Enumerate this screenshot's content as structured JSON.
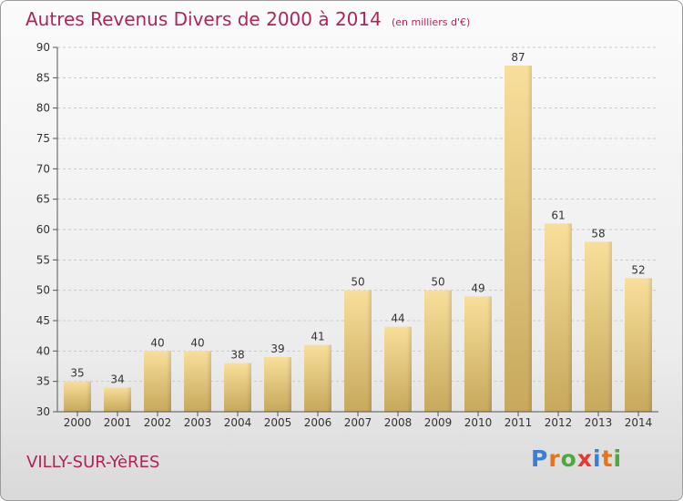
{
  "chart_data": {
    "type": "bar",
    "title": "Autres Revenus Divers de 2000 à 2014",
    "subtitle": "(en milliers d'€)",
    "categories": [
      "2000",
      "2001",
      "2002",
      "2003",
      "2004",
      "2005",
      "2006",
      "2007",
      "2008",
      "2009",
      "2010",
      "2011",
      "2012",
      "2013",
      "2014"
    ],
    "values": [
      35,
      34,
      40,
      40,
      38,
      39,
      41,
      50,
      44,
      50,
      49,
      87,
      61,
      58,
      52
    ],
    "ylim": [
      30,
      90
    ],
    "yticks": [
      30,
      35,
      40,
      45,
      50,
      55,
      60,
      65,
      70,
      75,
      80,
      85,
      90
    ],
    "grid": true,
    "bar_color": "#e3c578"
  },
  "footer": {
    "city": "VILLY-SUR-YèRES",
    "logo": {
      "letters": [
        "P",
        "r",
        "o",
        "x",
        "i",
        "t",
        "i"
      ],
      "colors": [
        "#3a7fd5",
        "#e8731c",
        "#4caa3c",
        "#e23a2c",
        "#3a7fd5",
        "#e8731c",
        "#4caa3c"
      ]
    }
  }
}
